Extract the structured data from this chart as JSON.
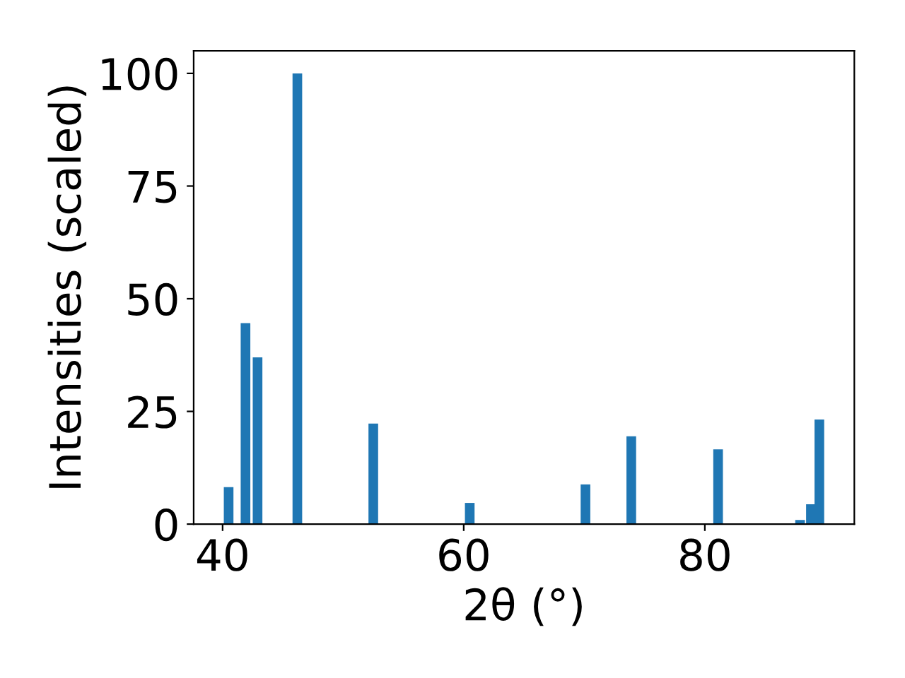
{
  "chart_data": {
    "type": "bar",
    "xlabel": "2θ (°)",
    "ylabel": "Intensities (scaled)",
    "x": [
      40.5,
      41.9,
      42.9,
      46.2,
      52.5,
      60.5,
      70.1,
      73.9,
      81.1,
      87.9,
      88.8,
      89.5
    ],
    "values": [
      8.2,
      44.6,
      37.0,
      100,
      22.3,
      4.7,
      8.8,
      19.5,
      16.6,
      0.9,
      4.4,
      23.2
    ],
    "color": "#1f77b4",
    "xlim": [
      37.6,
      92.4
    ],
    "xticks": [
      40,
      60,
      80
    ],
    "ylim": [
      0,
      105
    ],
    "yticks": [
      0,
      25,
      50,
      75,
      100
    ],
    "grid": false,
    "legend": false
  }
}
